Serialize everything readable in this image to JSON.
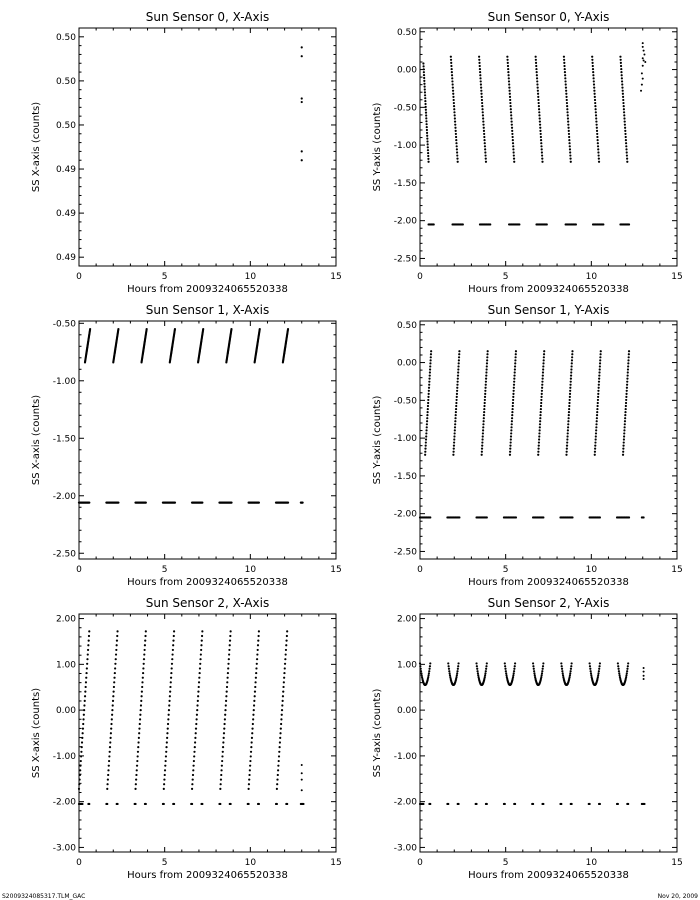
{
  "footer": {
    "left": "S2009324085317.TLM_GAC",
    "right": "Nov 20, 2009"
  },
  "chart_data": [
    {
      "type": "scatter",
      "title": "Sun Sensor 0, X-Axis",
      "xlabel": "Hours from 2009324065520338",
      "ylabel": "SS X-axis (counts)",
      "xlim": [
        0,
        15
      ],
      "ylim": [
        0.488,
        0.5015
      ],
      "x_ticks": [
        0,
        5,
        10,
        15
      ],
      "x_tick_labels": [
        "0",
        "5",
        "10",
        "15"
      ],
      "y_ticks": [
        0.4885,
        0.491,
        0.4935,
        0.496,
        0.4985,
        0.501
      ],
      "y_tick_labels": [
        "0.49",
        "0.49",
        "0.49",
        "0.50",
        "0.50",
        "0.50"
      ],
      "points": [
        [
          13.0,
          0.5004
        ],
        [
          13.0,
          0.4999
        ],
        [
          13.0,
          0.4975
        ],
        [
          13.0,
          0.4973
        ],
        [
          13.0,
          0.4945
        ],
        [
          13.0,
          0.494
        ]
      ]
    },
    {
      "type": "scatter",
      "title": "Sun Sensor 0, Y-Axis",
      "xlabel": "Hours from 2009324065520338",
      "ylabel": "SS Y-axis (counts)",
      "xlim": [
        0,
        15
      ],
      "ylim": [
        -2.6,
        0.55
      ],
      "x_ticks": [
        0,
        5,
        10,
        15
      ],
      "x_tick_labels": [
        "0",
        "5",
        "10",
        "15"
      ],
      "y_ticks": [
        -2.5,
        -2.0,
        -1.5,
        -1.0,
        -0.5,
        0.0,
        0.5
      ],
      "y_tick_labels": [
        "-2.50",
        "-2.00",
        "-1.50",
        "-1.00",
        "-0.50",
        "0.00",
        "0.50"
      ],
      "segments": [
        {
          "x0": 0.2,
          "x1": 0.5,
          "y0": 0.08,
          "y1": -1.22
        },
        {
          "x0": 1.8,
          "x1": 2.2,
          "y0": 0.17,
          "y1": -1.22
        },
        {
          "x0": 3.45,
          "x1": 3.85,
          "y0": 0.17,
          "y1": -1.22
        },
        {
          "x0": 5.1,
          "x1": 5.5,
          "y0": 0.17,
          "y1": -1.22
        },
        {
          "x0": 6.75,
          "x1": 7.15,
          "y0": 0.17,
          "y1": -1.22
        },
        {
          "x0": 8.4,
          "x1": 8.8,
          "y0": 0.17,
          "y1": -1.22
        },
        {
          "x0": 10.05,
          "x1": 10.45,
          "y0": 0.17,
          "y1": -1.22
        },
        {
          "x0": 11.7,
          "x1": 12.1,
          "y0": 0.17,
          "y1": -1.22
        }
      ],
      "baseline_clusters": {
        "y": -2.05,
        "ranges": [
          [
            0.5,
            0.8
          ],
          [
            1.9,
            2.5
          ],
          [
            3.5,
            4.1
          ],
          [
            5.2,
            5.8
          ],
          [
            6.8,
            7.4
          ],
          [
            8.5,
            9.1
          ],
          [
            10.1,
            10.7
          ],
          [
            11.7,
            12.2
          ]
        ]
      },
      "extra_points": [
        [
          13.0,
          0.35
        ],
        [
          13.0,
          0.3
        ],
        [
          13.05,
          0.25
        ],
        [
          13.1,
          0.2
        ],
        [
          13.0,
          0.15
        ],
        [
          13.05,
          0.12
        ],
        [
          13.15,
          0.1
        ],
        [
          13.0,
          0.05
        ],
        [
          12.95,
          -0.05
        ],
        [
          13.0,
          -0.12
        ],
        [
          12.95,
          -0.2
        ],
        [
          12.9,
          -0.28
        ]
      ]
    },
    {
      "type": "scatter",
      "title": "Sun Sensor 1, X-Axis",
      "xlabel": "Hours from 2009324065520338",
      "ylabel": "SS X-axis (counts)",
      "xlim": [
        0,
        15
      ],
      "ylim": [
        -2.55,
        -0.48
      ],
      "x_ticks": [
        0,
        5,
        10,
        15
      ],
      "x_tick_labels": [
        "0",
        "5",
        "10",
        "15"
      ],
      "y_ticks": [
        -2.5,
        -2.0,
        -1.5,
        -1.0,
        -0.5
      ],
      "y_tick_labels": [
        "-2.50",
        "-2.00",
        "-1.50",
        "-1.00",
        "-0.50"
      ],
      "segments": [
        {
          "x0": 0.35,
          "x1": 0.65,
          "y0": -0.84,
          "y1": -0.55
        },
        {
          "x0": 2.0,
          "x1": 2.3,
          "y0": -0.84,
          "y1": -0.55
        },
        {
          "x0": 3.65,
          "x1": 3.95,
          "y0": -0.84,
          "y1": -0.55
        },
        {
          "x0": 5.3,
          "x1": 5.6,
          "y0": -0.84,
          "y1": -0.55
        },
        {
          "x0": 6.95,
          "x1": 7.25,
          "y0": -0.84,
          "y1": -0.55
        },
        {
          "x0": 8.6,
          "x1": 8.9,
          "y0": -0.84,
          "y1": -0.55
        },
        {
          "x0": 10.25,
          "x1": 10.55,
          "y0": -0.84,
          "y1": -0.55
        },
        {
          "x0": 11.9,
          "x1": 12.2,
          "y0": -0.84,
          "y1": -0.55
        }
      ],
      "baseline_clusters": {
        "y": -2.06,
        "ranges": [
          [
            0.0,
            0.6
          ],
          [
            1.6,
            2.3
          ],
          [
            3.3,
            3.9
          ],
          [
            4.9,
            5.6
          ],
          [
            6.6,
            7.2
          ],
          [
            8.2,
            8.9
          ],
          [
            9.9,
            10.5
          ],
          [
            11.5,
            12.2
          ],
          [
            12.95,
            13.05
          ]
        ]
      },
      "extra_points": []
    },
    {
      "type": "scatter",
      "title": "Sun Sensor 1, Y-Axis",
      "xlabel": "Hours from 2009324065520338",
      "ylabel": "SS Y-axis (counts)",
      "xlim": [
        0,
        15
      ],
      "ylim": [
        -2.6,
        0.55
      ],
      "x_ticks": [
        0,
        5,
        10,
        15
      ],
      "x_tick_labels": [
        "0",
        "5",
        "10",
        "15"
      ],
      "y_ticks": [
        -2.5,
        -2.0,
        -1.5,
        -1.0,
        -0.5,
        0.0,
        0.5
      ],
      "y_tick_labels": [
        "-2.50",
        "-2.00",
        "-1.50",
        "-1.00",
        "-0.50",
        "0.00",
        "0.50"
      ],
      "segments": [
        {
          "x0": 0.3,
          "x1": 0.65,
          "y0": -1.22,
          "y1": 0.15
        },
        {
          "x0": 1.95,
          "x1": 2.3,
          "y0": -1.22,
          "y1": 0.15
        },
        {
          "x0": 3.6,
          "x1": 3.95,
          "y0": -1.22,
          "y1": 0.15
        },
        {
          "x0": 5.25,
          "x1": 5.6,
          "y0": -1.22,
          "y1": 0.15
        },
        {
          "x0": 6.9,
          "x1": 7.25,
          "y0": -1.22,
          "y1": 0.15
        },
        {
          "x0": 8.55,
          "x1": 8.9,
          "y0": -1.22,
          "y1": 0.15
        },
        {
          "x0": 10.2,
          "x1": 10.55,
          "y0": -1.22,
          "y1": 0.15
        },
        {
          "x0": 11.85,
          "x1": 12.2,
          "y0": -1.22,
          "y1": 0.15
        }
      ],
      "baseline_clusters": {
        "y": -2.05,
        "ranges": [
          [
            0.0,
            0.6
          ],
          [
            1.6,
            2.3
          ],
          [
            3.3,
            3.9
          ],
          [
            4.9,
            5.6
          ],
          [
            6.6,
            7.2
          ],
          [
            8.2,
            8.9
          ],
          [
            9.9,
            10.5
          ],
          [
            11.5,
            12.2
          ],
          [
            12.95,
            13.05
          ]
        ]
      },
      "extra_points": []
    },
    {
      "type": "scatter",
      "title": "Sun Sensor 2, X-Axis",
      "xlabel": "Hours from 2009324065520338",
      "ylabel": "SS X-axis (counts)",
      "xlim": [
        0,
        15
      ],
      "ylim": [
        -3.1,
        2.1
      ],
      "x_ticks": [
        0,
        5,
        10,
        15
      ],
      "x_tick_labels": [
        "0",
        "5",
        "10",
        "15"
      ],
      "y_ticks": [
        -3.0,
        -2.0,
        -1.0,
        0.0,
        1.0,
        2.0
      ],
      "y_tick_labels": [
        "-3.00",
        "-2.00",
        "-1.00",
        "0.00",
        "1.00",
        "2.00"
      ],
      "segments": [
        {
          "x0": 0.0,
          "x1": 0.6,
          "y0": -1.72,
          "y1": 1.72
        },
        {
          "x0": 1.65,
          "x1": 2.25,
          "y0": -1.72,
          "y1": 1.72
        },
        {
          "x0": 3.3,
          "x1": 3.9,
          "y0": -1.72,
          "y1": 1.72
        },
        {
          "x0": 4.95,
          "x1": 5.55,
          "y0": -1.72,
          "y1": 1.72
        },
        {
          "x0": 6.6,
          "x1": 7.2,
          "y0": -1.72,
          "y1": 1.72
        },
        {
          "x0": 8.25,
          "x1": 8.85,
          "y0": -1.72,
          "y1": 1.72
        },
        {
          "x0": 9.9,
          "x1": 10.5,
          "y0": -1.72,
          "y1": 1.72
        },
        {
          "x0": 11.55,
          "x1": 12.15,
          "y0": -1.72,
          "y1": 1.72
        }
      ],
      "baseline_clusters": {
        "y": -2.05,
        "ranges": [
          [
            0.0,
            0.2
          ],
          [
            0.55,
            0.6
          ],
          [
            1.6,
            1.65
          ],
          [
            2.2,
            2.25
          ],
          [
            3.25,
            3.3
          ],
          [
            3.85,
            3.9
          ],
          [
            4.9,
            4.95
          ],
          [
            5.5,
            5.55
          ],
          [
            6.55,
            6.6
          ],
          [
            7.15,
            7.2
          ],
          [
            8.2,
            8.25
          ],
          [
            8.8,
            8.85
          ],
          [
            9.85,
            9.9
          ],
          [
            10.45,
            10.5
          ],
          [
            11.5,
            11.55
          ],
          [
            12.1,
            12.15
          ],
          [
            12.95,
            13.1
          ]
        ]
      },
      "extra_points": [
        [
          13.0,
          -1.2
        ],
        [
          13.0,
          -1.38
        ],
        [
          13.0,
          -1.52
        ],
        [
          13.0,
          -1.75
        ]
      ]
    },
    {
      "type": "scatter",
      "title": "Sun Sensor 2, Y-Axis",
      "xlabel": "Hours from 2009324065520338",
      "ylabel": "SS Y-axis (counts)",
      "xlim": [
        0,
        15
      ],
      "ylim": [
        -3.1,
        2.1
      ],
      "x_ticks": [
        0,
        5,
        10,
        15
      ],
      "x_tick_labels": [
        "0",
        "5",
        "10",
        "15"
      ],
      "y_ticks": [
        -3.0,
        -2.0,
        -1.0,
        0.0,
        1.0,
        2.0
      ],
      "y_tick_labels": [
        "-3.00",
        "-2.00",
        "-1.00",
        "0.00",
        "1.00",
        "2.00"
      ],
      "arcs": [
        {
          "x0": 0.0,
          "x1": 0.6,
          "y_top": 1.02,
          "y_bottom": 0.55
        },
        {
          "x0": 1.65,
          "x1": 2.25,
          "y_top": 1.02,
          "y_bottom": 0.55
        },
        {
          "x0": 3.3,
          "x1": 3.9,
          "y_top": 1.02,
          "y_bottom": 0.55
        },
        {
          "x0": 4.95,
          "x1": 5.55,
          "y_top": 1.02,
          "y_bottom": 0.55
        },
        {
          "x0": 6.6,
          "x1": 7.2,
          "y_top": 1.02,
          "y_bottom": 0.55
        },
        {
          "x0": 8.25,
          "x1": 8.85,
          "y_top": 1.02,
          "y_bottom": 0.55
        },
        {
          "x0": 9.9,
          "x1": 10.5,
          "y_top": 1.02,
          "y_bottom": 0.55
        },
        {
          "x0": 11.55,
          "x1": 12.15,
          "y_top": 1.02,
          "y_bottom": 0.55
        }
      ],
      "baseline_clusters": {
        "y": -2.05,
        "ranges": [
          [
            0.0,
            0.2
          ],
          [
            0.55,
            0.6
          ],
          [
            1.6,
            1.65
          ],
          [
            2.2,
            2.25
          ],
          [
            3.25,
            3.3
          ],
          [
            3.85,
            3.9
          ],
          [
            4.9,
            4.95
          ],
          [
            5.5,
            5.55
          ],
          [
            6.55,
            6.6
          ],
          [
            7.15,
            7.2
          ],
          [
            8.2,
            8.25
          ],
          [
            8.8,
            8.85
          ],
          [
            9.85,
            9.9
          ],
          [
            10.45,
            10.5
          ],
          [
            11.5,
            11.55
          ],
          [
            12.1,
            12.15
          ],
          [
            12.95,
            13.1
          ]
        ]
      },
      "extra_points": [
        [
          13.05,
          0.92
        ],
        [
          13.05,
          0.84
        ],
        [
          13.05,
          0.75
        ],
        [
          13.05,
          0.68
        ]
      ]
    }
  ]
}
